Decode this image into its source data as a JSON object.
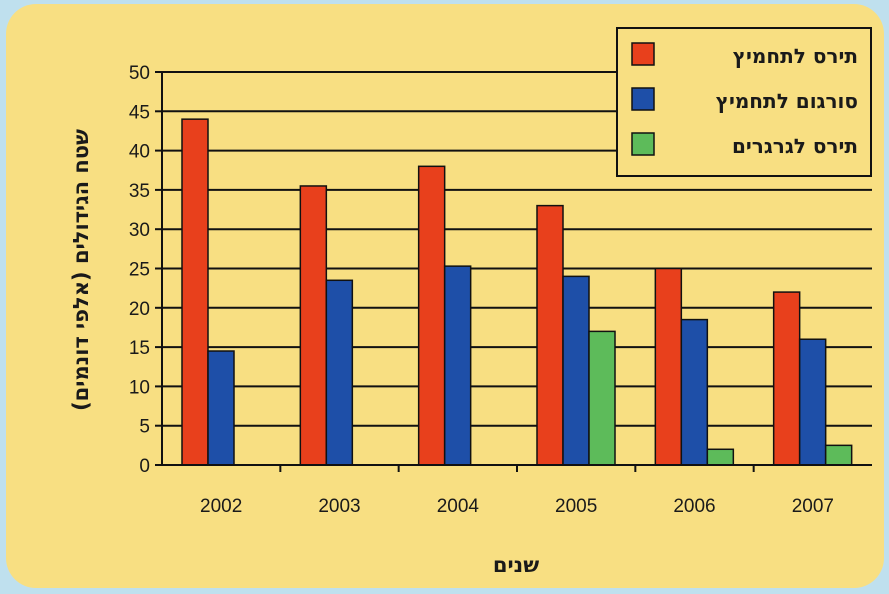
{
  "chart_data": {
    "type": "bar",
    "categories": [
      "2002",
      "2003",
      "2004",
      "2005",
      "2006",
      "2007"
    ],
    "series": [
      {
        "name": "תירס לתחמיץ",
        "color": "#e8401c",
        "values": [
          44,
          35.5,
          38,
          33,
          25,
          22
        ]
      },
      {
        "name": "סורגום לתחמיץ",
        "color": "#1e4fa8",
        "values": [
          14.5,
          23.5,
          25.3,
          24,
          18.5,
          16
        ]
      },
      {
        "name": "תירס לגרגרים",
        "color": "#5dbb5a",
        "values": [
          null,
          null,
          null,
          17,
          2,
          2.5
        ]
      }
    ],
    "ylabel": "שטח הגידולים (אלפי דונמים)",
    "xlabel": "שנים",
    "ylim": [
      0,
      50
    ],
    "yticks": [
      0,
      5,
      10,
      15,
      20,
      25,
      30,
      35,
      40,
      45,
      50
    ],
    "grid": true,
    "legend_position": "top-right"
  }
}
